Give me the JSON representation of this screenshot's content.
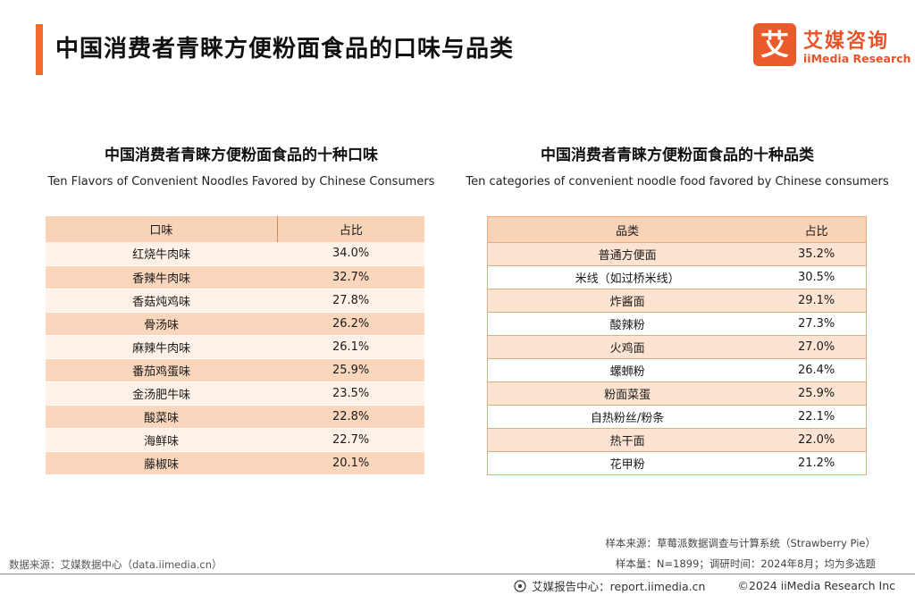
{
  "header": {
    "title": "中国消费者青睐方便粉面食品的口味与品类",
    "accent_color": "#f26a2e"
  },
  "logo": {
    "mark": "艾",
    "cn": "艾媒咨询",
    "en": "iiMedia Research",
    "color": "#e8542a"
  },
  "left_panel": {
    "title": "中国消费者青睐方便粉面食品的十种口味",
    "subtitle": "Ten Flavors of Convenient Noodles Favored by Chinese Consumers",
    "columns": [
      "口味",
      "占比"
    ],
    "rows": [
      {
        "name": "红烧牛肉味",
        "value": "34.0%"
      },
      {
        "name": "香辣牛肉味",
        "value": "32.7%"
      },
      {
        "name": "香菇炖鸡味",
        "value": "27.8%"
      },
      {
        "name": "骨汤味",
        "value": "26.2%"
      },
      {
        "name": "麻辣牛肉味",
        "value": "26.1%"
      },
      {
        "name": "番茄鸡蛋味",
        "value": "25.9%"
      },
      {
        "name": "金汤肥牛味",
        "value": "23.5%"
      },
      {
        "name": "酸菜味",
        "value": "22.8%"
      },
      {
        "name": "海鲜味",
        "value": "22.7%"
      },
      {
        "name": "藤椒味",
        "value": "20.1%"
      }
    ]
  },
  "right_panel": {
    "title": "中国消费者青睐方便粉面食品的十种品类",
    "subtitle": "Ten categories of convenient noodle food favored by Chinese consumers",
    "columns": [
      "品类",
      "占比"
    ],
    "rows": [
      {
        "name": "普通方便面",
        "value": "35.2%"
      },
      {
        "name": "米线（如过桥米线）",
        "value": "30.5%"
      },
      {
        "name": "炸酱面",
        "value": "29.1%"
      },
      {
        "name": "酸辣粉",
        "value": "27.3%"
      },
      {
        "name": "火鸡面",
        "value": "27.0%"
      },
      {
        "name": "螺蛳粉",
        "value": "26.4%"
      },
      {
        "name": "粉面菜蛋",
        "value": "25.9%"
      },
      {
        "name": "自热粉丝/粉条",
        "value": "22.1%"
      },
      {
        "name": "热干面",
        "value": "22.0%"
      },
      {
        "name": "花甲粉",
        "value": "21.2%"
      }
    ]
  },
  "notes": {
    "sample_source": "样本来源：草莓派数据调查与计算系统（Strawberry Pie）",
    "sample_info": "样本量：N=1899；调研时间：2024年8月；均为多选题",
    "data_source": "数据来源：艾媒数据中心（data.iimedia.cn）"
  },
  "footer": {
    "report_center": "艾媒报告中心：report.iimedia.cn",
    "copyright": "©2024  iiMedia Research Inc",
    "icon": "report-center-icon"
  }
}
